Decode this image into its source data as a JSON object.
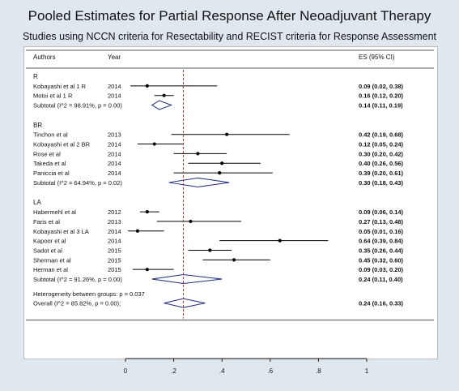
{
  "title": "Pooled Estimates for Partial Response After Neoadjuvant Therapy",
  "subtitle": "Studies using NCCN criteria for Resectability and RECIST criteria for Response Assessment",
  "header": {
    "authors": "Authors",
    "year": "Year",
    "es": "ES (95% CI)"
  },
  "colors": {
    "line": "#000000",
    "diamond": "#1f2a7a",
    "pooled_line": "#a0463c",
    "background": "#dfe8ef",
    "panel": "#ffffff"
  },
  "chart_data": {
    "type": "forest",
    "xlim": [
      0,
      1
    ],
    "x_ticks": [
      "0",
      ".2",
      ".4",
      ".6",
      ".8",
      "1"
    ],
    "pooled_estimate": 0.24,
    "groups": [
      {
        "label": "R",
        "studies": [
          {
            "author": "Kobayashi et al 1 R",
            "year": "2014",
            "es": 0.09,
            "lo": 0.02,
            "hi": 0.38,
            "es_text": "0.09 (0.02, 0.38)"
          },
          {
            "author": "Motoi et al 1 R",
            "year": "2014",
            "es": 0.16,
            "lo": 0.12,
            "hi": 0.2,
            "es_text": "0.16 (0.12, 0.20)"
          }
        ],
        "subtotal": {
          "label": "Subtotal  (I^2 = 98.91%, p = 0.00)",
          "es": 0.14,
          "lo": 0.11,
          "hi": 0.19,
          "es_text": "0.14 (0.11, 0.19)"
        }
      },
      {
        "label": "BR",
        "studies": [
          {
            "author": "Tinchon et al",
            "year": "2013",
            "es": 0.42,
            "lo": 0.19,
            "hi": 0.68,
            "es_text": "0.42 (0.19, 0.68)"
          },
          {
            "author": "Kobayashi et al 2 BR",
            "year": "2014",
            "es": 0.12,
            "lo": 0.05,
            "hi": 0.24,
            "es_text": "0.12 (0.05, 0.24)"
          },
          {
            "author": "Rose et al",
            "year": "2014",
            "es": 0.3,
            "lo": 0.2,
            "hi": 0.42,
            "es_text": "0.30 (0.20, 0.42)"
          },
          {
            "author": "Takeda et al",
            "year": "2014",
            "es": 0.4,
            "lo": 0.26,
            "hi": 0.56,
            "es_text": "0.40 (0.26, 0.56)"
          },
          {
            "author": "Paniccia et al",
            "year": "2014",
            "es": 0.39,
            "lo": 0.2,
            "hi": 0.61,
            "es_text": "0.39 (0.20, 0.61)"
          }
        ],
        "subtotal": {
          "label": "Subtotal  (I^2 = 64.94%, p = 0.02)",
          "es": 0.3,
          "lo": 0.18,
          "hi": 0.43,
          "es_text": "0.30 (0.18, 0.43)"
        }
      },
      {
        "label": "LA",
        "studies": [
          {
            "author": "Habermehl et al",
            "year": "2012",
            "es": 0.09,
            "lo": 0.06,
            "hi": 0.14,
            "es_text": "0.09 (0.06, 0.14)"
          },
          {
            "author": "Faris et al",
            "year": "2013",
            "es": 0.27,
            "lo": 0.13,
            "hi": 0.48,
            "es_text": "0.27 (0.13, 0.48)"
          },
          {
            "author": "Kobayashi et al 3 LA",
            "year": "2014",
            "es": 0.05,
            "lo": 0.01,
            "hi": 0.16,
            "es_text": "0.05 (0.01, 0.16)"
          },
          {
            "author": "Kapoor et al",
            "year": "2014",
            "es": 0.64,
            "lo": 0.39,
            "hi": 0.84,
            "es_text": "0.64 (0.39, 0.84)"
          },
          {
            "author": "Sadot et al",
            "year": "2015",
            "es": 0.35,
            "lo": 0.26,
            "hi": 0.44,
            "es_text": "0.35 (0.26, 0.44)"
          },
          {
            "author": "Sherman et al",
            "year": "2015",
            "es": 0.45,
            "lo": 0.32,
            "hi": 0.6,
            "es_text": "0.45 (0.32, 0.60)"
          },
          {
            "author": "Herman et al",
            "year": "2015",
            "es": 0.09,
            "lo": 0.03,
            "hi": 0.2,
            "es_text": "0.09 (0.03, 0.20)"
          }
        ],
        "subtotal": {
          "label": "Subtotal  (I^2 = 91.26%, p = 0.00)",
          "es": 0.24,
          "lo": 0.11,
          "hi": 0.4,
          "es_text": "0.24 (0.11, 0.40)"
        }
      }
    ],
    "heterogeneity": "Heterogeneity between groups: p = 0.037",
    "overall": {
      "label": "Overall  (I^2 = 85.82%, p = 0.00);",
      "es": 0.24,
      "lo": 0.16,
      "hi": 0.33,
      "es_text": "0.24 (0.16, 0.33)"
    }
  }
}
